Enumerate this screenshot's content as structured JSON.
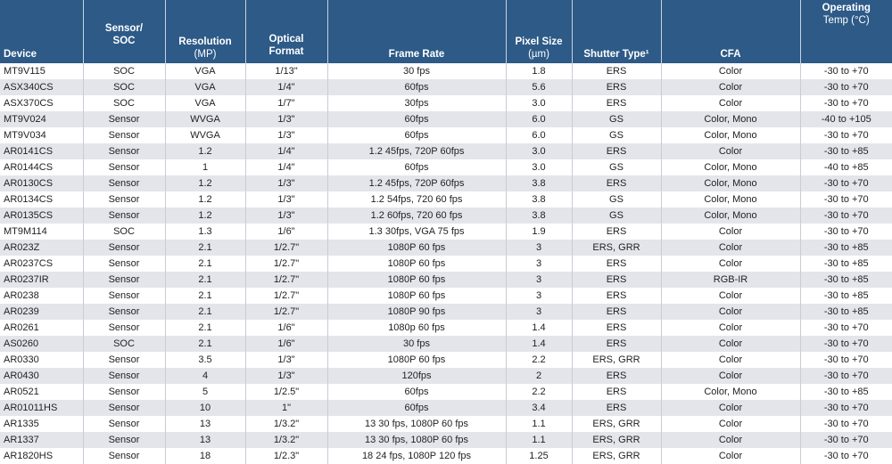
{
  "header": {
    "device": "Device",
    "sensor_soc": [
      "Sensor/",
      "SOC"
    ],
    "resolution": [
      "Resolution",
      "(MP)"
    ],
    "optical_format": [
      "Optical",
      "Format"
    ],
    "frame_rate": "Frame Rate",
    "pixel_size": [
      "Pixel Size",
      "(µm)"
    ],
    "shutter_type": "Shutter Type¹",
    "cfa": "CFA",
    "operating_temp": [
      "Operating",
      "Temp (°C)"
    ]
  },
  "rows": [
    [
      "MT9V115",
      "SOC",
      "VGA",
      "1/13\"",
      "30 fps",
      "1.8",
      "ERS",
      "Color",
      "-30 to +70"
    ],
    [
      "ASX340CS",
      "SOC",
      "VGA",
      "1/4\"",
      "60fps",
      "5.6",
      "ERS",
      "Color",
      "-30 to +70"
    ],
    [
      "ASX370CS",
      "SOC",
      "VGA",
      "1/7\"",
      "30fps",
      "3.0",
      "ERS",
      "Color",
      "-30 to +70"
    ],
    [
      "MT9V024",
      "Sensor",
      "WVGA",
      "1/3\"",
      "60fps",
      "6.0",
      "GS",
      "Color, Mono",
      "-40 to +105"
    ],
    [
      "MT9V034",
      "Sensor",
      "WVGA",
      "1/3\"",
      "60fps",
      "6.0",
      "GS",
      "Color, Mono",
      "-30 to +70"
    ],
    [
      "AR0141CS",
      "Sensor",
      "1.2",
      "1/4\"",
      "1.2 45fps, 720P 60fps",
      "3.0",
      "ERS",
      "Color",
      "-30 to +85"
    ],
    [
      "AR0144CS",
      "Sensor",
      "1",
      "1/4\"",
      "60fps",
      "3.0",
      "GS",
      "Color, Mono",
      "-40 to +85"
    ],
    [
      "AR0130CS",
      "Sensor",
      "1.2",
      "1/3\"",
      "1.2 45fps, 720P 60fps",
      "3.8",
      "ERS",
      "Color, Mono",
      "-30 to +70"
    ],
    [
      "AR0134CS",
      "Sensor",
      "1.2",
      "1/3\"",
      "1.2 54fps, 720 60 fps",
      "3.8",
      "GS",
      "Color, Mono",
      "-30 to +70"
    ],
    [
      "AR0135CS",
      "Sensor",
      "1.2",
      "1/3\"",
      "1.2 60fps, 720 60 fps",
      "3.8",
      "GS",
      "Color, Mono",
      "-30 to +70"
    ],
    [
      "MT9M114",
      "SOC",
      "1.3",
      "1/6\"",
      "1.3 30fps, VGA 75 fps",
      "1.9",
      "ERS",
      "Color",
      "-30 to +70"
    ],
    [
      "AR023Z",
      "Sensor",
      "2.1",
      "1/2.7\"",
      "1080P 60 fps",
      "3",
      "ERS, GRR",
      "Color",
      "-30 to +85"
    ],
    [
      "AR0237CS",
      "Sensor",
      "2.1",
      "1/2.7\"",
      "1080P 60 fps",
      "3",
      "ERS",
      "Color",
      "-30 to +85"
    ],
    [
      "AR0237IR",
      "Sensor",
      "2.1",
      "1/2.7\"",
      "1080P 60 fps",
      "3",
      "ERS",
      "RGB-IR",
      "-30 to +85"
    ],
    [
      "AR0238",
      "Sensor",
      "2.1",
      "1/2.7\"",
      "1080P 60 fps",
      "3",
      "ERS",
      "Color",
      "-30 to +85"
    ],
    [
      "AR0239",
      "Sensor",
      "2.1",
      "1/2.7\"",
      "1080P 90 fps",
      "3",
      "ERS",
      "Color",
      "-30 to +85"
    ],
    [
      "AR0261",
      "Sensor",
      "2.1",
      "1/6\"",
      "1080p 60 fps",
      "1.4",
      "ERS",
      "Color",
      "-30 to +70"
    ],
    [
      "AS0260",
      "SOC",
      "2.1",
      "1/6\"",
      "30 fps",
      "1.4",
      "ERS",
      "Color",
      "-30 to +70"
    ],
    [
      "AR0330",
      "Sensor",
      "3.5",
      "1/3\"",
      "1080P 60 fps",
      "2.2",
      "ERS, GRR",
      "Color",
      "-30 to +70"
    ],
    [
      "AR0430",
      "Sensor",
      "4",
      "1/3\"",
      "120fps",
      "2",
      "ERS",
      "Color",
      "-30 to +70"
    ],
    [
      "AR0521",
      "Sensor",
      "5",
      "1/2.5\"",
      "60fps",
      "2.2",
      "ERS",
      "Color, Mono",
      "-30 to +85"
    ],
    [
      "AR01011HS",
      "Sensor",
      "10",
      "1\"",
      "60fps",
      "3.4",
      "ERS",
      "Color",
      "-30 to +70"
    ],
    [
      "AR1335",
      "Sensor",
      "13",
      "1/3.2\"",
      "13 30 fps, 1080P 60 fps",
      "1.1",
      "ERS, GRR",
      "Color",
      "-30 to +70"
    ],
    [
      "AR1337",
      "Sensor",
      "13",
      "1/3.2\"",
      "13 30 fps, 1080P 60 fps",
      "1.1",
      "ERS, GRR",
      "Color",
      "-30 to +70"
    ],
    [
      "AR1820HS",
      "Sensor",
      "18",
      "1/2.3\"",
      "18 24 fps, 1080P 120 fps",
      "1.25",
      "ERS, GRR",
      "Color",
      "-30 to +70"
    ]
  ]
}
